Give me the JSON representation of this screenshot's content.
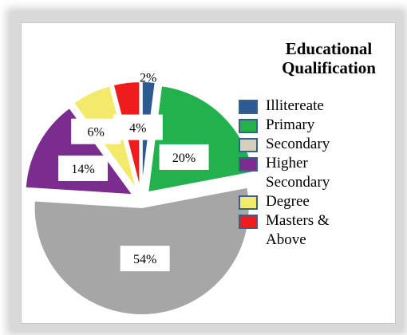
{
  "chart_data": {
    "type": "pie",
    "title_line1": "Educational",
    "title_line2": "Qualification",
    "slices": [
      {
        "name": "Illitereate",
        "value": 2,
        "label": "2%",
        "color": "#2e5a94"
      },
      {
        "name": "Primary",
        "value": 20,
        "label": "20%",
        "color": "#22b14c"
      },
      {
        "name": "Secondary",
        "value": 54,
        "label": "54%",
        "color": "#a6a6a6"
      },
      {
        "name": "Higher Secondary",
        "value": 14,
        "label": "14%",
        "color": "#7b2c8f"
      },
      {
        "name": "Degree",
        "value": 6,
        "label": "6%",
        "color": "#f3e96a"
      },
      {
        "name": "Masters & Above",
        "value": 4,
        "label": "4%",
        "color": "#ee1c1c"
      }
    ],
    "legend": [
      {
        "label": "Illitereate",
        "color": "#2e5a94"
      },
      {
        "label": "Primary",
        "color": "#22b14c"
      },
      {
        "label": "Secondary",
        "color": "#d4d0bc"
      },
      {
        "label": "Higher\nSecondary",
        "color": "#7b2c8f"
      },
      {
        "label": "Degree",
        "color": "#f3e96a"
      },
      {
        "label": "Masters &\nAbove",
        "color": "#ee1c1c"
      }
    ],
    "legend_placement": "right"
  }
}
